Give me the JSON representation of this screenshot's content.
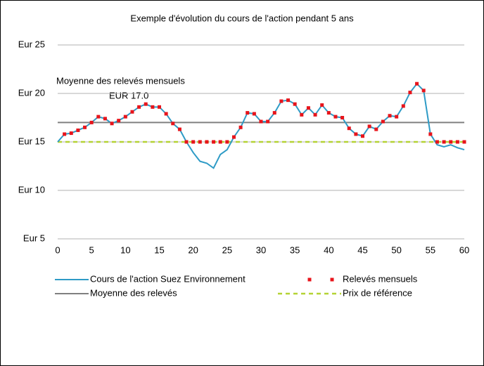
{
  "chart_data": {
    "type": "line",
    "title": "Exemple d'évolution du cours de l'action pendant 5 ans",
    "annotations": [
      "Moyenne des relevés mensuels",
      "EUR 17.0"
    ],
    "x": [
      0,
      1,
      2,
      3,
      4,
      5,
      6,
      7,
      8,
      9,
      10,
      11,
      12,
      13,
      14,
      15,
      16,
      17,
      18,
      19,
      20,
      21,
      22,
      23,
      24,
      25,
      26,
      27,
      28,
      29,
      30,
      31,
      32,
      33,
      34,
      35,
      36,
      37,
      38,
      39,
      40,
      41,
      42,
      43,
      44,
      45,
      46,
      47,
      48,
      49,
      50,
      51,
      52,
      53,
      54,
      55,
      56,
      57,
      58,
      59,
      60
    ],
    "series": [
      {
        "name": "Cours de l'action Suez Environnement",
        "color": "#2e9bc6",
        "style": "line",
        "values": [
          15.0,
          15.8,
          15.9,
          16.2,
          16.5,
          17.0,
          17.6,
          17.4,
          16.9,
          17.2,
          17.6,
          18.1,
          18.6,
          18.9,
          18.6,
          18.6,
          17.9,
          16.9,
          16.3,
          15.0,
          13.9,
          13.0,
          12.8,
          12.3,
          13.7,
          14.2,
          15.5,
          16.5,
          18.0,
          17.9,
          17.1,
          17.1,
          18.0,
          19.2,
          19.3,
          18.9,
          17.8,
          18.5,
          17.8,
          18.8,
          18.0,
          17.6,
          17.5,
          16.4,
          15.8,
          15.6,
          16.6,
          16.3,
          17.1,
          17.7,
          17.6,
          18.7,
          20.1,
          21.0,
          20.3,
          15.8,
          14.7,
          14.5,
          14.7,
          14.4,
          14.2
        ]
      },
      {
        "name": "Relevés mensuels",
        "color": "#e8141b",
        "style": "markers",
        "values": [
          null,
          15.8,
          15.9,
          16.2,
          16.5,
          17.0,
          17.6,
          17.4,
          16.9,
          17.2,
          17.6,
          18.1,
          18.6,
          18.9,
          18.6,
          18.6,
          17.9,
          16.9,
          16.3,
          15.0,
          15.0,
          15.0,
          15.0,
          15.0,
          15.0,
          15.0,
          15.5,
          16.5,
          18.0,
          17.9,
          17.1,
          17.1,
          18.0,
          19.2,
          19.3,
          18.9,
          17.8,
          18.5,
          17.8,
          18.8,
          18.0,
          17.6,
          17.5,
          16.4,
          15.8,
          15.6,
          16.6,
          16.3,
          17.1,
          17.7,
          17.6,
          18.7,
          20.1,
          21.0,
          20.3,
          15.8,
          15.0,
          15.0,
          15.0,
          15.0,
          15.0
        ]
      },
      {
        "name": "Moyenne des relevés",
        "color": "#808080",
        "style": "line",
        "x": [
          0,
          60
        ],
        "values": [
          17.0,
          17.0
        ]
      },
      {
        "name": "Prix de référence",
        "color": "#b5d334",
        "style": "dashed",
        "x": [
          0,
          60
        ],
        "values": [
          15,
          15
        ]
      }
    ],
    "xlim": [
      0,
      60
    ],
    "xticks": [
      0,
      5,
      10,
      15,
      20,
      25,
      30,
      35,
      40,
      45,
      50,
      55,
      60
    ],
    "ylim": [
      5,
      25
    ],
    "yticks": [
      {
        "value": 5,
        "label": "Eur 5"
      },
      {
        "value": 10,
        "label": "Eur 10"
      },
      {
        "value": 15,
        "label": "Eur 15"
      },
      {
        "value": 20,
        "label": "Eur 20"
      },
      {
        "value": 25,
        "label": "Eur 25"
      }
    ],
    "grid": true,
    "legend": "bottom"
  }
}
